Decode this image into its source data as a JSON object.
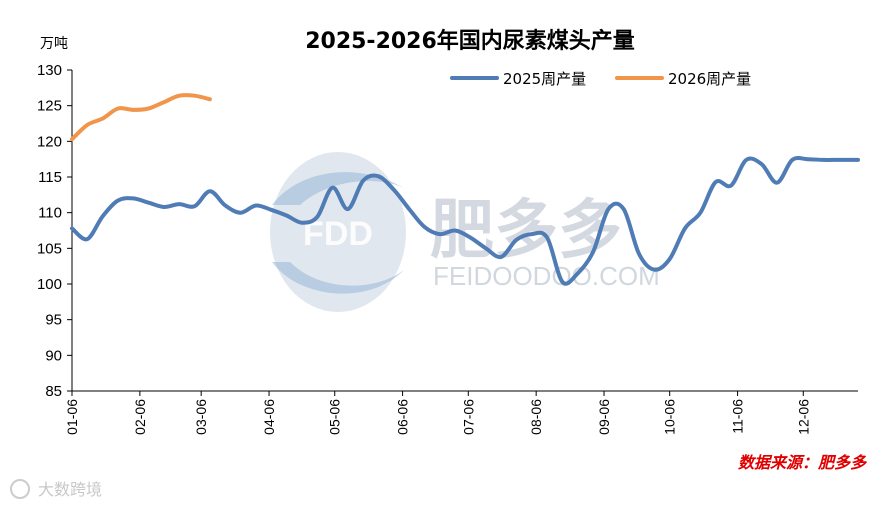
{
  "chart_data": {
    "type": "line",
    "title": "2025-2026年国内尿素煤头产量",
    "ylabel": "万吨",
    "xlabel": "",
    "ylim": [
      85,
      130
    ],
    "yticks": [
      85,
      90,
      95,
      100,
      105,
      110,
      115,
      120,
      125,
      130
    ],
    "x_tick_labels": [
      "01-06",
      "02-06",
      "03-06",
      "04-06",
      "05-06",
      "06-06",
      "07-06",
      "08-06",
      "09-06",
      "10-06",
      "11-06",
      "12-06"
    ],
    "x_unit": "day of year",
    "x_tick_days": [
      6,
      37,
      65,
      96,
      126,
      157,
      187,
      218,
      249,
      279,
      310,
      340
    ],
    "xlim": [
      6,
      365
    ],
    "legend_position": "top-right",
    "series": [
      {
        "name": "2025周产量",
        "color": "#4f7cb5",
        "x": [
          6,
          13,
          20,
          27,
          34,
          41,
          48,
          55,
          62,
          69,
          76,
          83,
          90,
          97,
          104,
          111,
          118,
          125,
          132,
          139,
          146,
          153,
          160,
          167,
          174,
          181,
          188,
          195,
          202,
          209,
          216,
          223,
          230,
          237,
          244,
          251,
          258,
          265,
          272,
          279,
          286,
          293,
          300,
          307,
          314,
          321,
          328,
          335,
          342,
          349,
          356,
          365
        ],
        "values": [
          107.8,
          106.3,
          109.5,
          111.7,
          112.0,
          111.4,
          110.8,
          111.2,
          110.9,
          113.0,
          111.0,
          110.0,
          111.0,
          110.4,
          109.6,
          108.6,
          109.4,
          113.5,
          110.5,
          114.5,
          115.1,
          113.2,
          110.5,
          108.0,
          107.0,
          107.5,
          106.5,
          105.0,
          103.8,
          106.2,
          107.0,
          106.5,
          100.3,
          101.5,
          104.5,
          110.5,
          110.5,
          104.2,
          102.0,
          103.5,
          107.8,
          110.0,
          114.3,
          113.8,
          117.4,
          116.8,
          114.2,
          117.4,
          117.5,
          117.4,
          117.4,
          117.4
        ]
      },
      {
        "name": "2026周产量",
        "color": "#f0954a",
        "x": [
          6,
          13,
          20,
          27,
          34,
          41,
          48,
          55,
          62,
          69
        ],
        "values": [
          120.3,
          122.3,
          123.2,
          124.6,
          124.4,
          124.6,
          125.5,
          126.4,
          126.4,
          125.9
        ]
      }
    ]
  },
  "watermark": {
    "logo_letters": "FDD",
    "brand_cn": "肥多多",
    "brand_url": "FEIDOODOO.COM"
  },
  "source_note": "数据来源：肥多多",
  "corner_mark": "大数跨境"
}
